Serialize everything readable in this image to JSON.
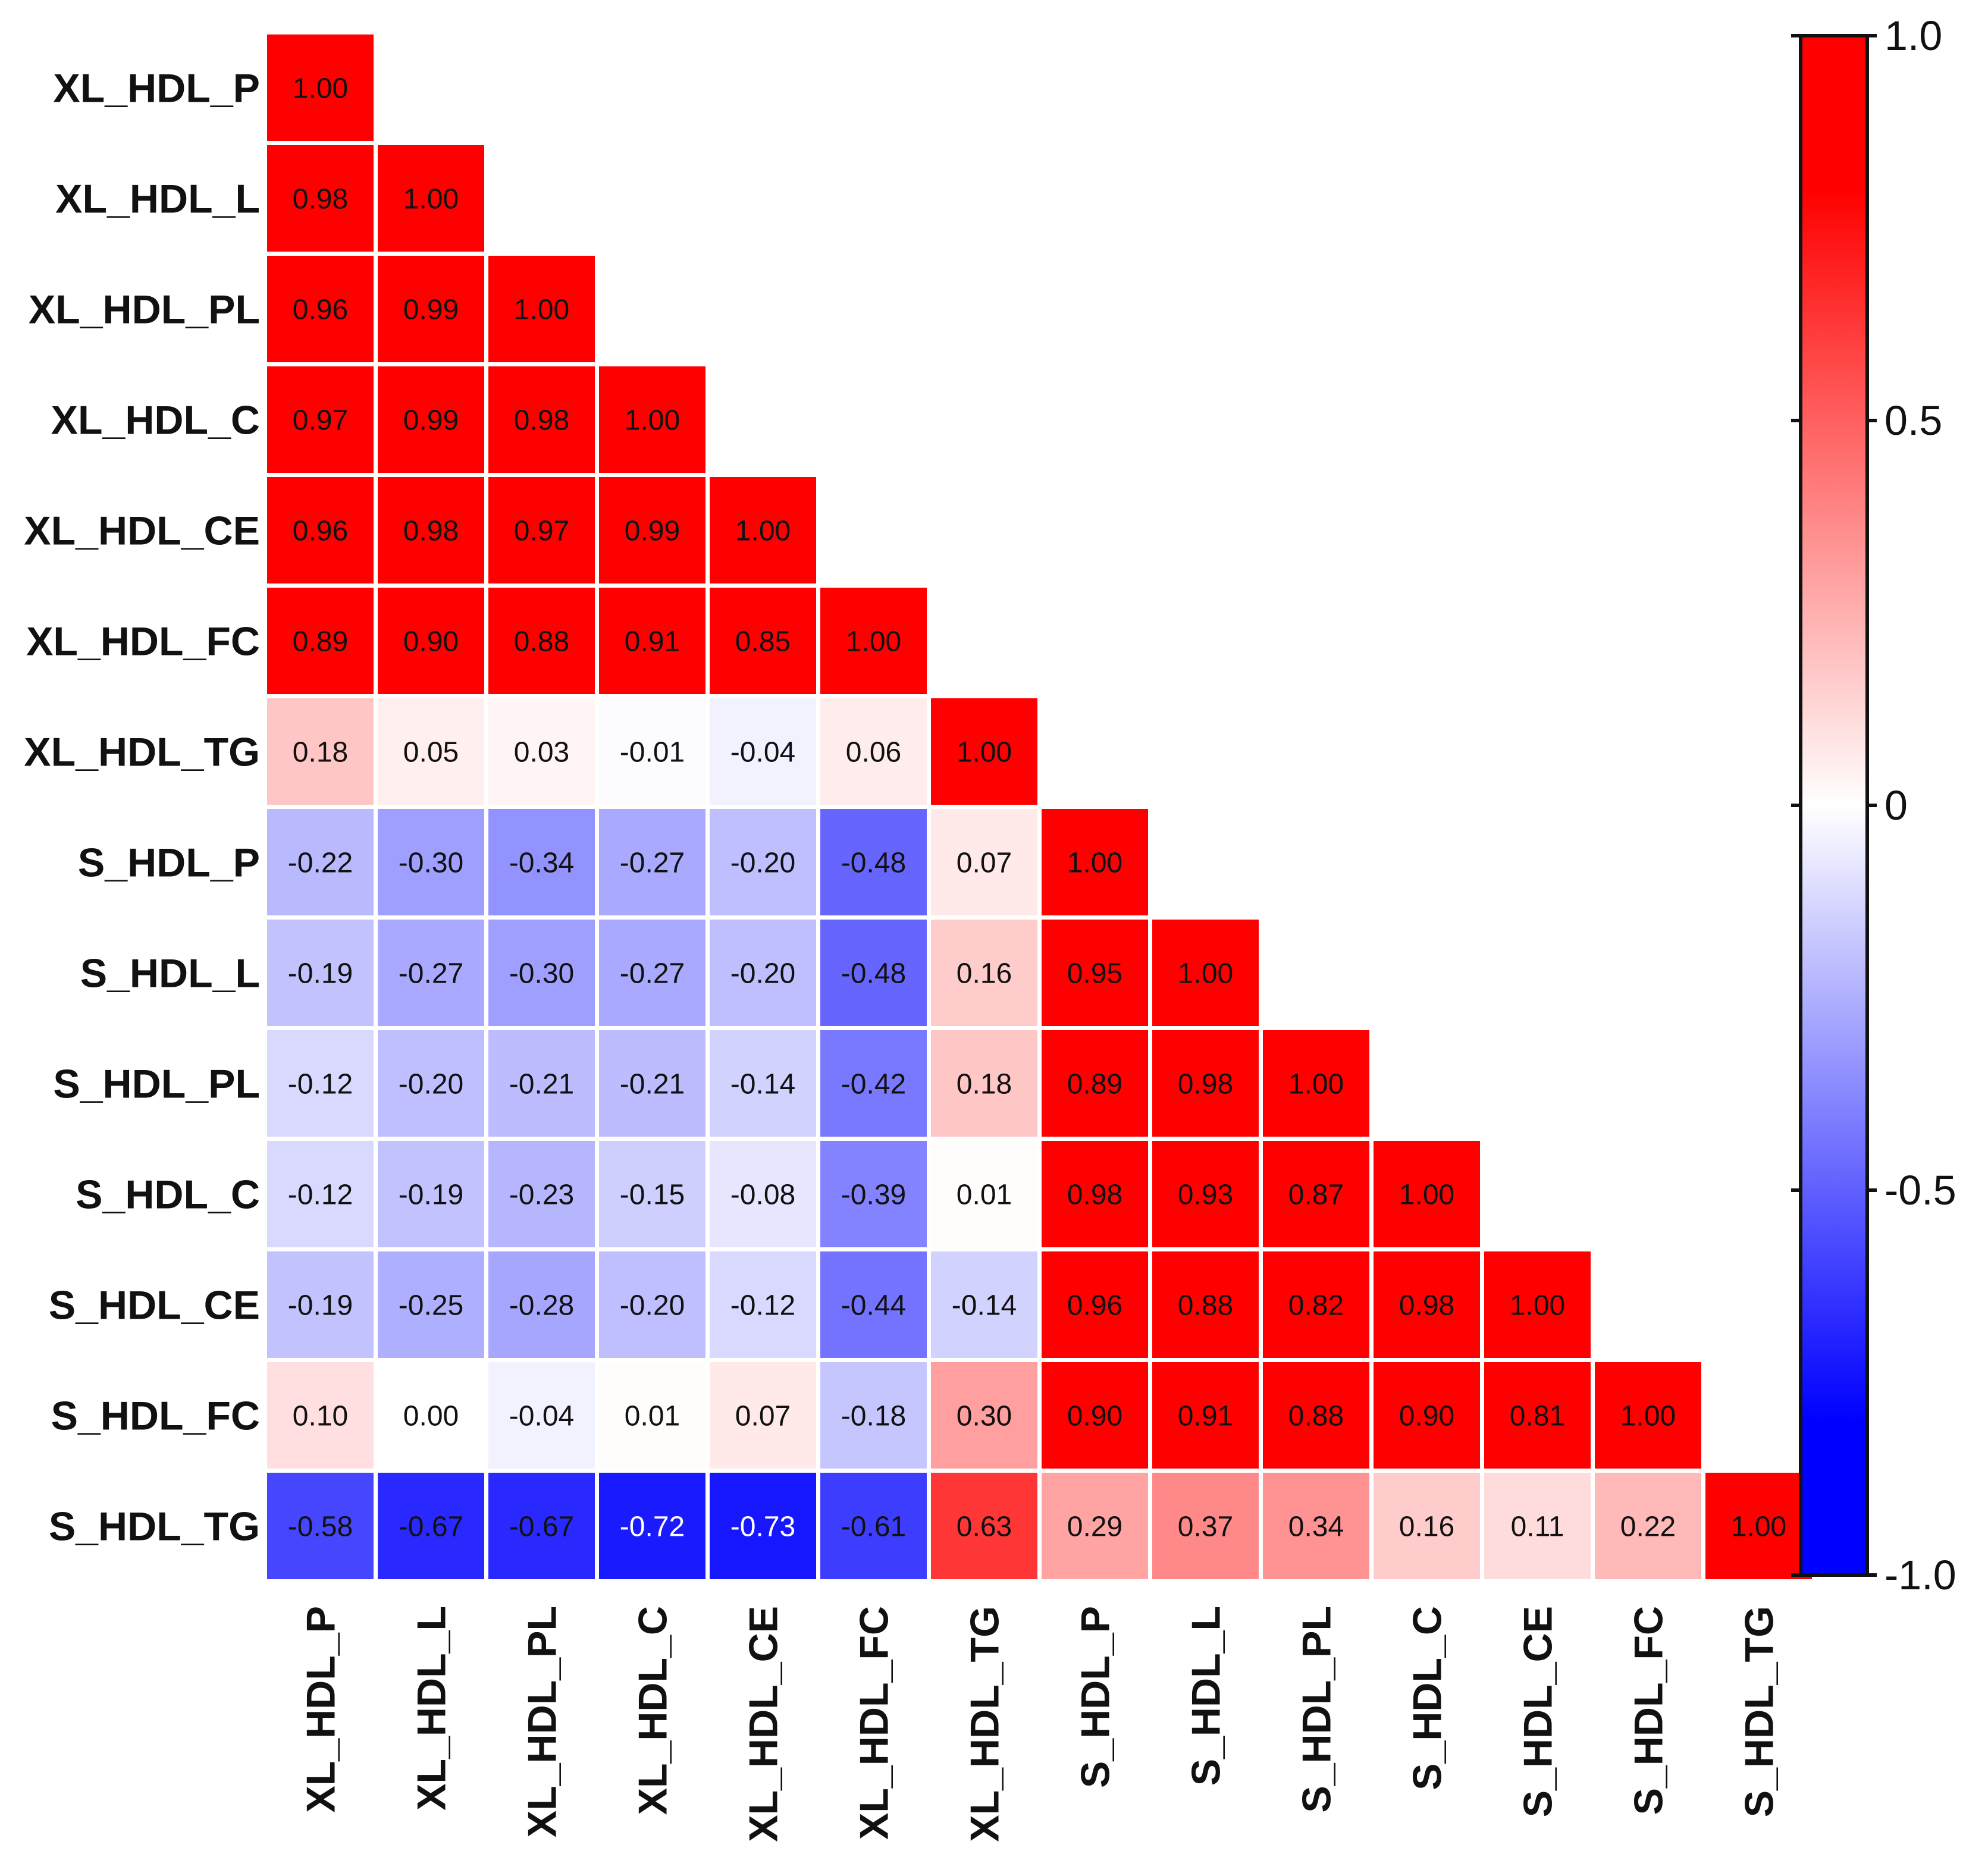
{
  "chart_data": {
    "type": "heatmap",
    "title": "",
    "variables": [
      "XL_HDL_P",
      "XL_HDL_L",
      "XL_HDL_PL",
      "XL_HDL_C",
      "XL_HDL_CE",
      "XL_HDL_FC",
      "XL_HDL_TG",
      "S_HDL_P",
      "S_HDL_L",
      "S_HDL_PL",
      "S_HDL_C",
      "S_HDL_CE",
      "S_HDL_FC",
      "S_HDL_TG"
    ],
    "matrix": [
      [
        "1.00"
      ],
      [
        "0.98",
        "1.00"
      ],
      [
        "0.96",
        "0.99",
        "1.00"
      ],
      [
        "0.97",
        "0.99",
        "0.98",
        "1.00"
      ],
      [
        "0.96",
        "0.98",
        "0.97",
        "0.99",
        "1.00"
      ],
      [
        "0.89",
        "0.90",
        "0.88",
        "0.91",
        "0.85",
        "1.00"
      ],
      [
        "0.18",
        "0.05",
        "0.03",
        "-0.01",
        "-0.04",
        "0.06",
        "1.00"
      ],
      [
        "-0.22",
        "-0.30",
        "-0.34",
        "-0.27",
        "-0.20",
        "-0.48",
        "0.07",
        "1.00"
      ],
      [
        "-0.19",
        "-0.27",
        "-0.30",
        "-0.27",
        "-0.20",
        "-0.48",
        "0.16",
        "0.95",
        "1.00"
      ],
      [
        "-0.12",
        "-0.20",
        "-0.21",
        "-0.21",
        "-0.14",
        "-0.42",
        "0.18",
        "0.89",
        "0.98",
        "1.00"
      ],
      [
        "-0.12",
        "-0.19",
        "-0.23",
        "-0.15",
        "-0.08",
        "-0.39",
        "0.01",
        "0.98",
        "0.93",
        "0.87",
        "1.00"
      ],
      [
        "-0.19",
        "-0.25",
        "-0.28",
        "-0.20",
        "-0.12",
        "-0.44",
        "-0.14",
        "0.96",
        "0.88",
        "0.82",
        "0.98",
        "1.00"
      ],
      [
        "0.10",
        "0.00",
        "-0.04",
        "0.01",
        "0.07",
        "-0.18",
        "0.30",
        "0.90",
        "0.91",
        "0.88",
        "0.90",
        "0.81",
        "1.00"
      ],
      [
        "-0.58",
        "-0.67",
        "-0.67",
        "-0.72",
        "-0.73",
        "-0.61",
        "0.63",
        "0.29",
        "0.37",
        "0.34",
        "0.16",
        "0.11",
        "0.22",
        "1.00"
      ]
    ],
    "colorbar": {
      "range": [
        -1.0,
        1.0
      ],
      "ticks": [
        "1.0",
        "0.5",
        "0",
        "-0.5",
        "-1.0"
      ],
      "tick_values": [
        1.0,
        0.5,
        0,
        -0.5,
        -1.0
      ],
      "colors": {
        "low": "#0000ff",
        "mid": "#ffffff",
        "high": "#ff0000",
        "saturation_value": 0.8
      }
    }
  }
}
